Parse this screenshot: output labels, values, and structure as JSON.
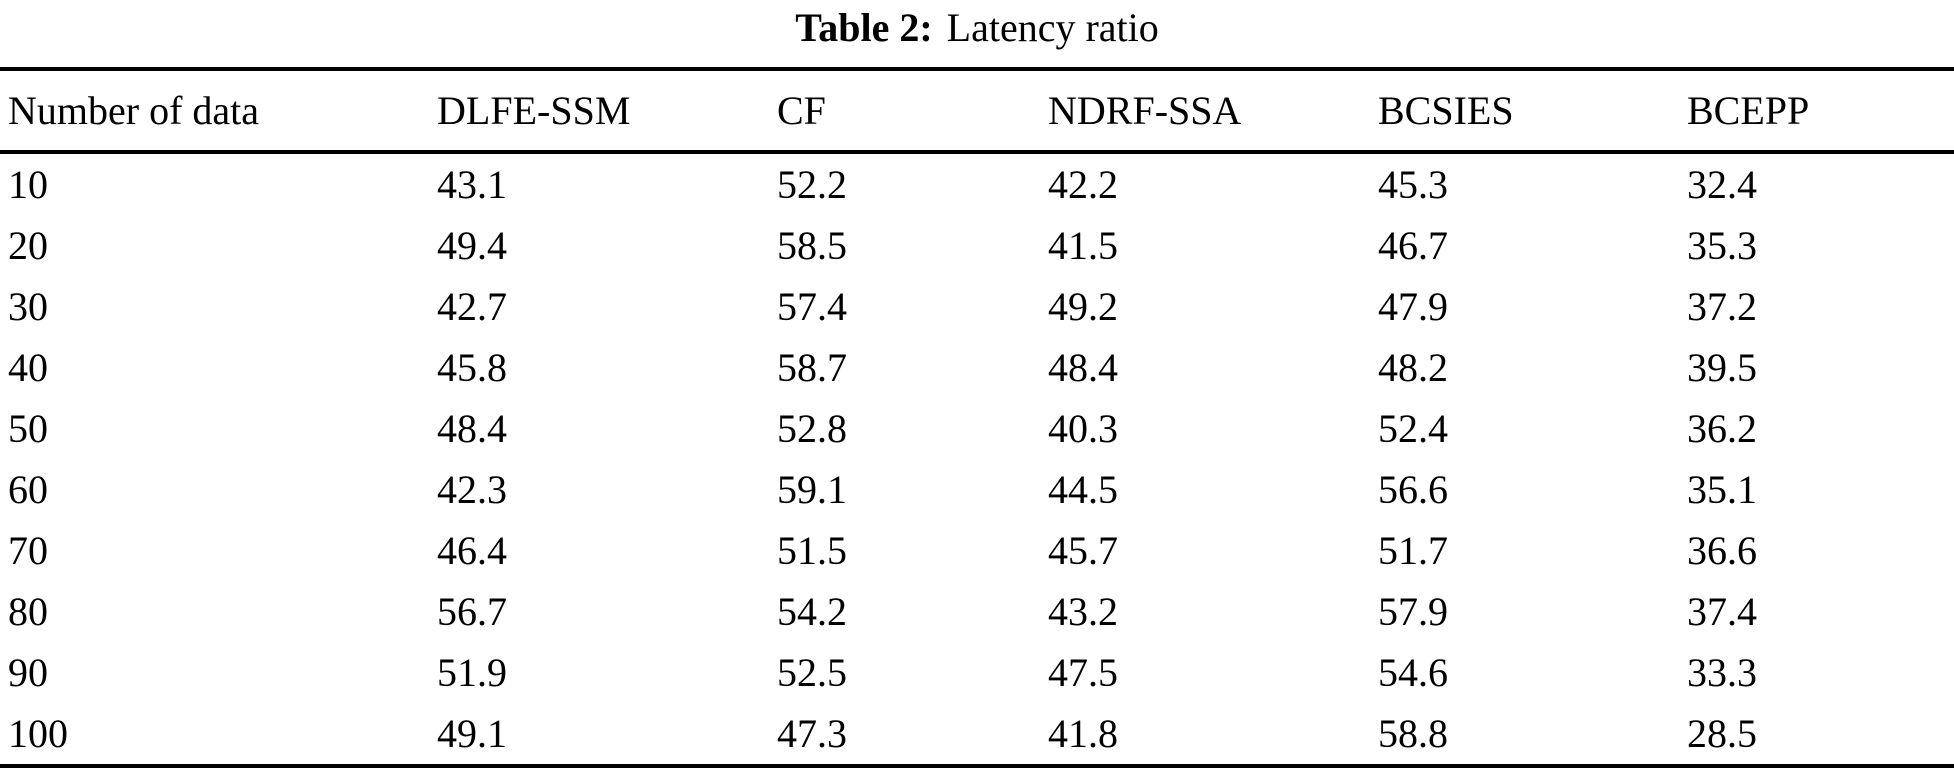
{
  "caption": {
    "label": "Table 2:",
    "text": "Latency ratio"
  },
  "table": {
    "columns": [
      "Number of data",
      "DLFE-SSM",
      "CF",
      "NDRF-SSA",
      "BCSIES",
      "BCEPP"
    ],
    "rows": [
      [
        "10",
        "43.1",
        "52.2",
        "42.2",
        "45.3",
        "32.4"
      ],
      [
        "20",
        "49.4",
        "58.5",
        "41.5",
        "46.7",
        "35.3"
      ],
      [
        "30",
        "42.7",
        "57.4",
        "49.2",
        "47.9",
        "37.2"
      ],
      [
        "40",
        "45.8",
        "58.7",
        "48.4",
        "48.2",
        "39.5"
      ],
      [
        "50",
        "48.4",
        "52.8",
        "40.3",
        "52.4",
        "36.2"
      ],
      [
        "60",
        "42.3",
        "59.1",
        "44.5",
        "56.6",
        "35.1"
      ],
      [
        "70",
        "46.4",
        "51.5",
        "45.7",
        "51.7",
        "36.6"
      ],
      [
        "80",
        "56.7",
        "54.2",
        "43.2",
        "57.9",
        "37.4"
      ],
      [
        "90",
        "51.9",
        "52.5",
        "47.5",
        "54.6",
        "33.3"
      ],
      [
        "100",
        "49.1",
        "47.3",
        "41.8",
        "58.8",
        "28.5"
      ]
    ]
  },
  "chart_data": {
    "type": "table",
    "title": "Table 2: Latency ratio",
    "categories": [
      10,
      20,
      30,
      40,
      50,
      60,
      70,
      80,
      90,
      100
    ],
    "series": [
      {
        "name": "DLFE-SSM",
        "values": [
          43.1,
          49.4,
          42.7,
          45.8,
          48.4,
          42.3,
          46.4,
          56.7,
          51.9,
          49.1
        ]
      },
      {
        "name": "CF",
        "values": [
          52.2,
          58.5,
          57.4,
          58.7,
          52.8,
          59.1,
          51.5,
          54.2,
          52.5,
          47.3
        ]
      },
      {
        "name": "NDRF-SSA",
        "values": [
          42.2,
          41.5,
          49.2,
          48.4,
          40.3,
          44.5,
          45.7,
          43.2,
          47.5,
          41.8
        ]
      },
      {
        "name": "BCSIES",
        "values": [
          45.3,
          46.7,
          47.9,
          48.2,
          52.4,
          56.6,
          51.7,
          57.9,
          54.6,
          58.8
        ]
      },
      {
        "name": "BCEPP",
        "values": [
          32.4,
          35.3,
          37.2,
          39.5,
          36.2,
          35.1,
          36.6,
          37.4,
          33.3,
          28.5
        ]
      }
    ],
    "xlabel": "Number of data"
  }
}
